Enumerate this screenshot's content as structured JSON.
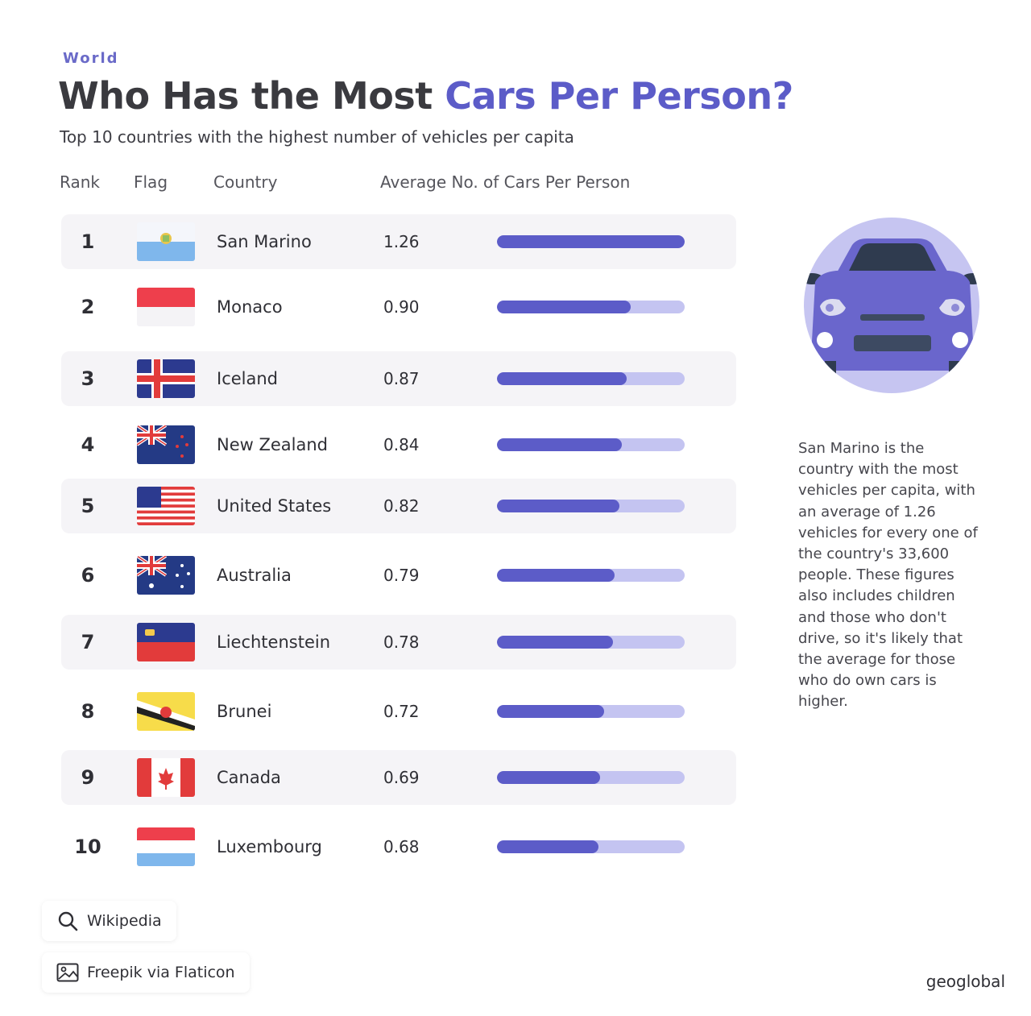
{
  "header": {
    "kicker": "World",
    "title_part1": "Who Has the Most ",
    "title_part2": "Cars Per Person?",
    "subtitle": "Top 10 countries with the highest number of vehicles per capita"
  },
  "columns": {
    "rank": "Rank",
    "flag": "Flag",
    "country": "Country",
    "value": "Average No. of Cars Per Person"
  },
  "chart_data": {
    "type": "bar",
    "orientation": "horizontal",
    "categories": [
      "San Marino",
      "Monaco",
      "Iceland",
      "New Zealand",
      "United States",
      "Australia",
      "Liechtenstein",
      "Brunei",
      "Canada",
      "Luxembourg"
    ],
    "ranks": [
      "1",
      "2",
      "3",
      "4",
      "5",
      "6",
      "7",
      "8",
      "9",
      "10"
    ],
    "values": [
      1.26,
      0.9,
      0.87,
      0.84,
      0.82,
      0.79,
      0.78,
      0.72,
      0.69,
      0.68
    ],
    "value_labels": [
      "1.26",
      "0.90",
      "0.87",
      "0.84",
      "0.82",
      "0.79",
      "0.78",
      "0.72",
      "0.69",
      "0.68"
    ],
    "flags": [
      "san-marino-flag",
      "monaco-flag",
      "iceland-flag",
      "new-zealand-flag",
      "united-states-flag",
      "australia-flag",
      "liechtenstein-flag",
      "brunei-flag",
      "canada-flag",
      "luxembourg-flag"
    ],
    "xlim": [
      0,
      1.26
    ],
    "grid": false,
    "bar_color": "#5c5cc8",
    "track_color": "#c4c4f1"
  },
  "illustration": {
    "icon": "car-front-icon",
    "circle_color": "#c6c5f1",
    "body_color": "#6a66cc"
  },
  "note": "San Marino is the country with the most vehicles per capita, with an average of 1.26 vehicles for every one of the country's 33,600 people. These figures also includes children and those who don't drive, so it's likely that the average for those who do own cars is higher.",
  "sources": {
    "data_label": "Wikipedia",
    "data_icon": "search-icon",
    "image_label": "Freepik via Flaticon",
    "image_icon": "image-icon"
  },
  "brand": "geoglobal",
  "colors": {
    "accent": "#5c5cc8",
    "title": "#3a3a3f",
    "row_shade": "#f5f4f7"
  }
}
